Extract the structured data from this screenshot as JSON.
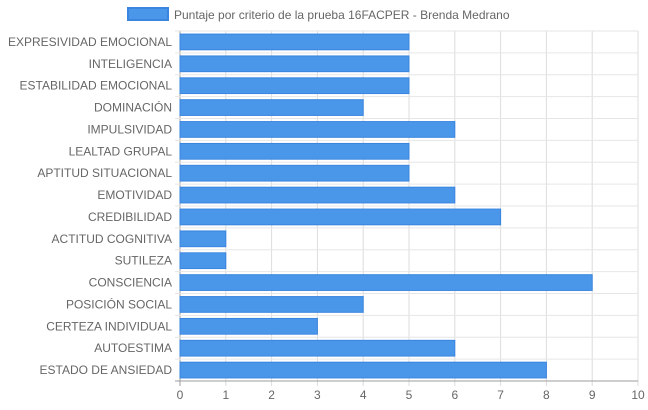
{
  "chart_data": {
    "type": "bar",
    "orientation": "horizontal",
    "title": "",
    "xlabel": "",
    "ylabel": "",
    "xlim": [
      0,
      10
    ],
    "x_ticks": [
      "0",
      "1",
      "2",
      "3",
      "4",
      "5",
      "6",
      "7",
      "8",
      "9",
      "10"
    ],
    "grid": true,
    "legend_position": "top",
    "categories": [
      "EXPRESIVIDAD EMOCIONAL",
      "INTELIGENCIA",
      "ESTABILIDAD EMOCIONAL",
      "DOMINACIÓN",
      "IMPULSIVIDAD",
      "LEALTAD GRUPAL",
      "APTITUD SITUACIONAL",
      "EMOTIVIDAD",
      "CREDIBILIDAD",
      "ACTITUD COGNITIVA",
      "SUTILEZA",
      "CONSCIENCIA",
      "POSICIÓN SOCIAL",
      "CERTEZA INDIVIDUAL",
      "AUTOESTIMA",
      "ESTADO DE ANSIEDAD"
    ],
    "series": [
      {
        "name": "Puntaje por criterio de la prueba 16FACPER - Brenda Medrano",
        "values": [
          5,
          5,
          5,
          4,
          6,
          5,
          5,
          6,
          7,
          1,
          1,
          9,
          4,
          3,
          6,
          8
        ],
        "color": "#4a97e9",
        "border_color": "#3a85e0"
      }
    ]
  }
}
